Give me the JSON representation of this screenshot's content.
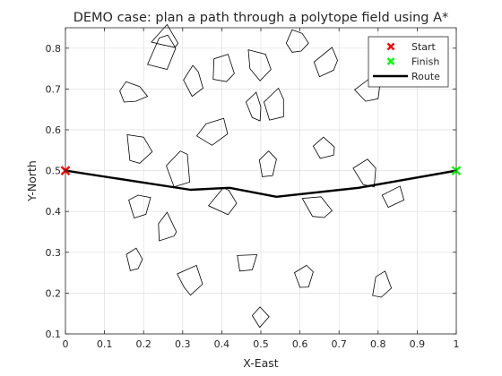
{
  "chart_data": {
    "type": "line",
    "title": "DEMO case: plan a path through a polytope field using A*",
    "xlabel": "X-East",
    "ylabel": "Y-North",
    "xlim": [
      0,
      1
    ],
    "ylim": [
      0.1,
      0.85
    ],
    "grid": true,
    "xticks": [
      0,
      0.1,
      0.2,
      0.3,
      0.4,
      0.5,
      0.6,
      0.7,
      0.8,
      0.9,
      1
    ],
    "xtick_labels": [
      "0",
      "0.1",
      "0.2",
      "0.3",
      "0.4",
      "0.5",
      "0.6",
      "0.7",
      "0.8",
      "0.9",
      "1"
    ],
    "yticks": [
      0.1,
      0.2,
      0.3,
      0.4,
      0.5,
      0.6,
      0.7,
      0.8
    ],
    "ytick_labels": [
      "0.1",
      "0.2",
      "0.3",
      "0.4",
      "0.5",
      "0.6",
      "0.7",
      "0.8"
    ],
    "legend_position": "top-right",
    "legend": [
      {
        "name": "Start",
        "marker": "x",
        "color": "#ff0000"
      },
      {
        "name": "Finish",
        "marker": "x",
        "color": "#00ff00"
      },
      {
        "name": "Route",
        "marker": "line",
        "color": "#000000"
      }
    ],
    "start": {
      "x": 0,
      "y": 0.5,
      "color": "#ff0000"
    },
    "finish": {
      "x": 1,
      "y": 0.5,
      "color": "#00ff00"
    },
    "route": {
      "color": "#000000",
      "points": [
        [
          0,
          0.5
        ],
        [
          0.32,
          0.453
        ],
        [
          0.42,
          0.458
        ],
        [
          0.54,
          0.436
        ],
        [
          0.75,
          0.458
        ],
        [
          1,
          0.5
        ]
      ]
    },
    "obstacles": [
      [
        [
          0.26,
          0.858
        ],
        [
          0.288,
          0.812
        ],
        [
          0.28,
          0.802
        ],
        [
          0.25,
          0.808
        ],
        [
          0.22,
          0.815
        ]
      ],
      [
        [
          0.34,
          0.742
        ],
        [
          0.352,
          0.702
        ],
        [
          0.324,
          0.682
        ],
        [
          0.302,
          0.722
        ],
        [
          0.326,
          0.758
        ]
      ],
      [
        [
          0.416,
          0.785
        ],
        [
          0.432,
          0.738
        ],
        [
          0.412,
          0.718
        ],
        [
          0.378,
          0.724
        ],
        [
          0.38,
          0.774
        ]
      ],
      [
        [
          0.24,
          0.825
        ],
        [
          0.262,
          0.832
        ],
        [
          0.282,
          0.8
        ],
        [
          0.26,
          0.748
        ],
        [
          0.21,
          0.76
        ]
      ],
      [
        [
          0.155,
          0.718
        ],
        [
          0.19,
          0.706
        ],
        [
          0.21,
          0.682
        ],
        [
          0.18,
          0.67
        ],
        [
          0.15,
          0.668
        ],
        [
          0.139,
          0.695
        ]
      ],
      [
        [
          0.58,
          0.845
        ],
        [
          0.606,
          0.836
        ],
        [
          0.622,
          0.812
        ],
        [
          0.603,
          0.793
        ],
        [
          0.58,
          0.79
        ],
        [
          0.565,
          0.812
        ]
      ],
      [
        [
          0.468,
          0.796
        ],
        [
          0.512,
          0.785
        ],
        [
          0.526,
          0.748
        ],
        [
          0.498,
          0.72
        ],
        [
          0.472,
          0.75
        ]
      ],
      [
        [
          0.682,
          0.802
        ],
        [
          0.696,
          0.77
        ],
        [
          0.686,
          0.746
        ],
        [
          0.65,
          0.73
        ],
        [
          0.636,
          0.766
        ]
      ],
      [
        [
          0.545,
          0.702
        ],
        [
          0.558,
          0.675
        ],
        [
          0.558,
          0.632
        ],
        [
          0.522,
          0.624
        ],
        [
          0.508,
          0.668
        ]
      ],
      [
        [
          0.488,
          0.692
        ],
        [
          0.5,
          0.656
        ],
        [
          0.498,
          0.622
        ],
        [
          0.478,
          0.63
        ],
        [
          0.462,
          0.668
        ]
      ],
      [
        [
          0.78,
          0.727
        ],
        [
          0.804,
          0.705
        ],
        [
          0.8,
          0.676
        ],
        [
          0.768,
          0.67
        ],
        [
          0.74,
          0.698
        ]
      ],
      [
        [
          0.36,
          0.615
        ],
        [
          0.405,
          0.628
        ],
        [
          0.415,
          0.59
        ],
        [
          0.375,
          0.562
        ],
        [
          0.336,
          0.585
        ]
      ],
      [
        [
          0.2,
          0.582
        ],
        [
          0.222,
          0.546
        ],
        [
          0.19,
          0.518
        ],
        [
          0.165,
          0.525
        ],
        [
          0.158,
          0.588
        ]
      ],
      [
        [
          0.312,
          0.54
        ],
        [
          0.318,
          0.472
        ],
        [
          0.278,
          0.46
        ],
        [
          0.258,
          0.512
        ],
        [
          0.294,
          0.548
        ]
      ],
      [
        [
          0.66,
          0.582
        ],
        [
          0.688,
          0.558
        ],
        [
          0.686,
          0.538
        ],
        [
          0.652,
          0.53
        ],
        [
          0.634,
          0.56
        ]
      ],
      [
        [
          0.52,
          0.548
        ],
        [
          0.54,
          0.528
        ],
        [
          0.53,
          0.488
        ],
        [
          0.504,
          0.485
        ],
        [
          0.496,
          0.526
        ]
      ],
      [
        [
          0.773,
          0.528
        ],
        [
          0.794,
          0.506
        ],
        [
          0.79,
          0.46
        ],
        [
          0.762,
          0.466
        ],
        [
          0.736,
          0.506
        ]
      ],
      [
        [
          0.218,
          0.434
        ],
        [
          0.206,
          0.393
        ],
        [
          0.176,
          0.384
        ],
        [
          0.162,
          0.428
        ],
        [
          0.186,
          0.44
        ]
      ],
      [
        [
          0.404,
          0.458
        ],
        [
          0.418,
          0.452
        ],
        [
          0.438,
          0.42
        ],
        [
          0.416,
          0.392
        ],
        [
          0.366,
          0.414
        ]
      ],
      [
        [
          0.654,
          0.436
        ],
        [
          0.682,
          0.402
        ],
        [
          0.662,
          0.385
        ],
        [
          0.632,
          0.388
        ],
        [
          0.606,
          0.432
        ]
      ],
      [
        [
          0.856,
          0.462
        ],
        [
          0.866,
          0.428
        ],
        [
          0.826,
          0.41
        ],
        [
          0.81,
          0.44
        ]
      ],
      [
        [
          0.26,
          0.398
        ],
        [
          0.284,
          0.35
        ],
        [
          0.278,
          0.34
        ],
        [
          0.24,
          0.328
        ],
        [
          0.238,
          0.37
        ]
      ],
      [
        [
          0.181,
          0.31
        ],
        [
          0.197,
          0.283
        ],
        [
          0.186,
          0.26
        ],
        [
          0.166,
          0.255
        ],
        [
          0.156,
          0.295
        ]
      ],
      [
        [
          0.49,
          0.294
        ],
        [
          0.478,
          0.257
        ],
        [
          0.446,
          0.254
        ],
        [
          0.44,
          0.292
        ]
      ],
      [
        [
          0.617,
          0.268
        ],
        [
          0.634,
          0.252
        ],
        [
          0.622,
          0.215
        ],
        [
          0.6,
          0.214
        ],
        [
          0.586,
          0.25
        ]
      ],
      [
        [
          0.818,
          0.254
        ],
        [
          0.834,
          0.212
        ],
        [
          0.808,
          0.19
        ],
        [
          0.786,
          0.194
        ],
        [
          0.794,
          0.24
        ]
      ],
      [
        [
          0.335,
          0.268
        ],
        [
          0.351,
          0.222
        ],
        [
          0.32,
          0.195
        ],
        [
          0.304,
          0.214
        ],
        [
          0.286,
          0.247
        ]
      ],
      [
        [
          0.498,
          0.166
        ],
        [
          0.521,
          0.142
        ],
        [
          0.497,
          0.116
        ],
        [
          0.478,
          0.145
        ]
      ]
    ]
  }
}
